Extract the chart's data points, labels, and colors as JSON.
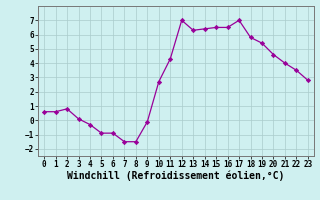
{
  "x": [
    0,
    1,
    2,
    3,
    4,
    5,
    6,
    7,
    8,
    9,
    10,
    11,
    12,
    13,
    14,
    15,
    16,
    17,
    18,
    19,
    20,
    21,
    22,
    23
  ],
  "y": [
    0.6,
    0.6,
    0.8,
    0.1,
    -0.3,
    -0.9,
    -0.9,
    -1.5,
    -1.5,
    -0.1,
    2.7,
    4.3,
    7.0,
    6.3,
    6.4,
    6.5,
    6.5,
    7.0,
    5.8,
    5.4,
    4.6,
    4.0,
    3.5,
    2.8
  ],
  "line_color": "#990099",
  "marker": "D",
  "marker_size": 2.2,
  "bg_color": "#cff0f0",
  "grid_color": "#aacccc",
  "xlabel": "Windchill (Refroidissement éolien,°C)",
  "xlim": [
    -0.5,
    23.5
  ],
  "ylim": [
    -2.5,
    8.0
  ],
  "yticks": [
    -2,
    -1,
    0,
    1,
    2,
    3,
    4,
    5,
    6,
    7
  ],
  "xticks": [
    0,
    1,
    2,
    3,
    4,
    5,
    6,
    7,
    8,
    9,
    10,
    11,
    12,
    13,
    14,
    15,
    16,
    17,
    18,
    19,
    20,
    21,
    22,
    23
  ],
  "tick_label_fontsize": 5.5,
  "xlabel_fontsize": 7.0,
  "linewidth": 0.9,
  "spine_color": "#777777"
}
